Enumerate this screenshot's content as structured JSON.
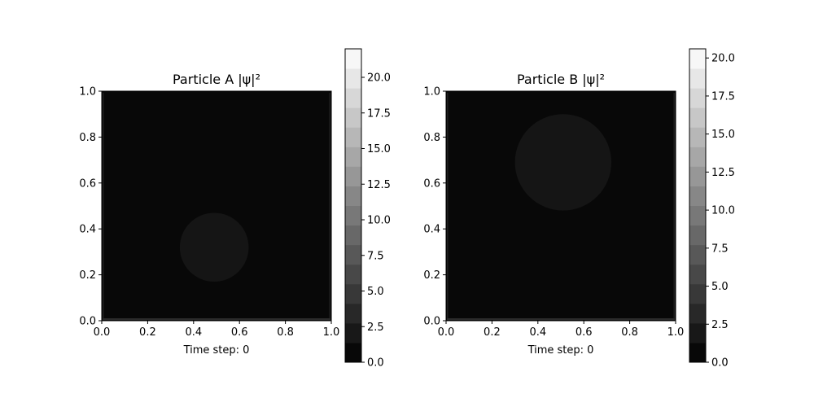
{
  "chart_data": [
    {
      "type": "heatmap",
      "title": "Particle A |ψ|²",
      "xlabel": "Time step: 0",
      "ylabel": "",
      "xlim": [
        0,
        1
      ],
      "ylim": [
        0,
        1
      ],
      "xticks": [
        "0.0",
        "0.2",
        "0.4",
        "0.6",
        "0.8",
        "1.0"
      ],
      "yticks": [
        "0.0",
        "0.2",
        "0.4",
        "0.6",
        "0.8",
        "1.0"
      ],
      "background_level": 0.5,
      "blob": {
        "cx": 0.49,
        "cy": 0.32,
        "r": 0.15,
        "level": 1.2
      },
      "colorbar": {
        "min": 0,
        "max": 22,
        "levels": 16,
        "ticks": [
          "0.0",
          "2.5",
          "5.0",
          "7.5",
          "10.0",
          "12.5",
          "15.0",
          "17.5",
          "20.0"
        ],
        "tick_values": [
          0,
          2.5,
          5,
          7.5,
          10,
          12.5,
          15,
          17.5,
          20
        ]
      },
      "colormap": "gray",
      "grid": false
    },
    {
      "type": "heatmap",
      "title": "Particle B |ψ|²",
      "xlabel": "Time step: 0",
      "ylabel": "",
      "xlim": [
        0,
        1
      ],
      "ylim": [
        0,
        1
      ],
      "xticks": [
        "0.0",
        "0.2",
        "0.4",
        "0.6",
        "0.8",
        "1.0"
      ],
      "yticks": [
        "0.0",
        "0.2",
        "0.4",
        "0.6",
        "0.8",
        "1.0"
      ],
      "background_level": 0.5,
      "blob": {
        "cx": 0.51,
        "cy": 0.69,
        "r": 0.21,
        "level": 1.2
      },
      "colorbar": {
        "min": 0,
        "max": 20.6,
        "levels": 16,
        "ticks": [
          "0.0",
          "2.5",
          "5.0",
          "7.5",
          "10.0",
          "12.5",
          "15.0",
          "17.5",
          "20.0"
        ],
        "tick_values": [
          0,
          2.5,
          5,
          7.5,
          10,
          12.5,
          15,
          17.5,
          20
        ]
      },
      "colormap": "gray",
      "grid": false
    }
  ]
}
